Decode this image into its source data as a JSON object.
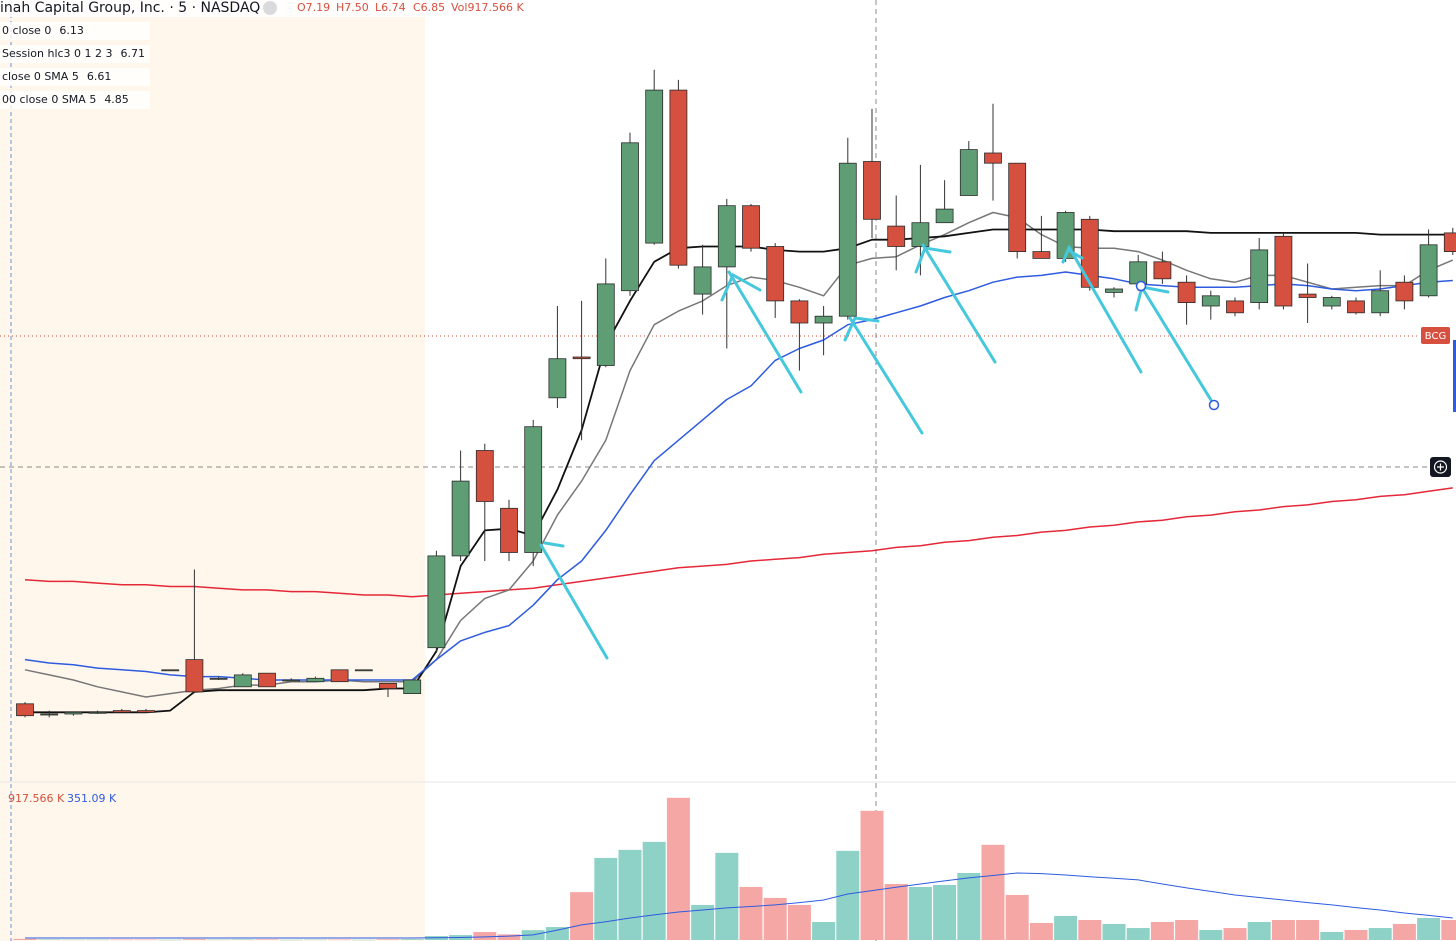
{
  "chart_data": {
    "type": "candlestick",
    "title": "inah Capital Group, Inc. · 5 · NASDAQ",
    "ohlc_labels": [
      "O7.19",
      "H7.50",
      "L6.74",
      "C6.85",
      "Vol917.566 K"
    ],
    "price_tag": "BCG",
    "ylim": [
      3.54,
      8.14
    ],
    "up_color": "#5f9e75",
    "down_color": "#d5503f",
    "candles": [
      [
        4.0,
        4.01,
        3.92,
        3.93
      ],
      [
        3.94,
        3.96,
        3.92,
        3.94
      ],
      [
        3.94,
        3.95,
        3.93,
        3.95
      ],
      [
        3.95,
        3.96,
        3.94,
        3.95
      ],
      [
        3.96,
        3.97,
        3.95,
        3.95
      ],
      [
        3.96,
        3.97,
        3.95,
        3.95
      ],
      [
        4.2,
        4.2,
        4.2,
        4.2
      ],
      [
        4.26,
        4.79,
        4.07,
        4.07
      ],
      [
        4.15,
        4.16,
        4.14,
        4.15
      ],
      [
        4.1,
        4.18,
        4.1,
        4.17
      ],
      [
        4.18,
        4.18,
        4.1,
        4.1
      ],
      [
        4.14,
        4.15,
        4.14,
        4.14
      ],
      [
        4.13,
        4.16,
        4.13,
        4.15
      ],
      [
        4.2,
        4.2,
        4.13,
        4.13
      ],
      [
        4.2,
        4.2,
        4.2,
        4.2
      ],
      [
        4.12,
        4.12,
        4.04,
        4.09
      ],
      [
        4.06,
        4.14,
        4.06,
        4.14
      ],
      [
        4.33,
        4.9,
        4.3,
        4.87
      ],
      [
        4.87,
        5.49,
        4.84,
        5.31
      ],
      [
        5.49,
        5.53,
        4.84,
        5.19
      ],
      [
        5.15,
        5.2,
        4.84,
        4.89
      ],
      [
        4.89,
        5.67,
        4.81,
        5.63
      ],
      [
        5.8,
        6.34,
        5.74,
        6.03
      ],
      [
        6.04,
        6.37,
        5.55,
        6.03
      ],
      [
        5.99,
        6.62,
        5.98,
        6.47
      ],
      [
        6.43,
        7.36,
        6.4,
        7.3
      ],
      [
        6.71,
        7.73,
        6.7,
        7.61
      ],
      [
        7.61,
        7.67,
        6.56,
        6.58
      ],
      [
        6.41,
        6.7,
        6.29,
        6.57
      ],
      [
        6.57,
        6.97,
        6.09,
        6.93
      ],
      [
        6.93,
        6.94,
        6.66,
        6.68
      ],
      [
        6.69,
        6.71,
        6.27,
        6.37
      ],
      [
        6.37,
        6.38,
        5.96,
        6.24
      ],
      [
        6.24,
        6.34,
        6.05,
        6.28
      ],
      [
        6.28,
        7.33,
        6.26,
        7.18
      ],
      [
        7.19,
        7.5,
        6.74,
        6.85
      ],
      [
        6.81,
        6.99,
        6.55,
        6.69
      ],
      [
        6.69,
        7.17,
        6.52,
        6.83
      ],
      [
        6.83,
        7.08,
        6.83,
        6.91
      ],
      [
        6.99,
        7.31,
        6.99,
        7.26
      ],
      [
        7.24,
        7.53,
        6.96,
        7.18
      ],
      [
        7.18,
        7.18,
        6.62,
        6.66
      ],
      [
        6.66,
        6.87,
        6.62,
        6.62
      ],
      [
        6.62,
        6.9,
        6.6,
        6.89
      ],
      [
        6.85,
        6.87,
        6.43,
        6.45
      ],
      [
        6.42,
        6.45,
        6.39,
        6.44
      ],
      [
        6.47,
        6.64,
        6.43,
        6.6
      ],
      [
        6.6,
        6.66,
        6.47,
        6.5
      ],
      [
        6.48,
        6.52,
        6.23,
        6.36
      ],
      [
        6.34,
        6.43,
        6.26,
        6.4
      ],
      [
        6.37,
        6.39,
        6.28,
        6.3
      ],
      [
        6.36,
        6.74,
        6.32,
        6.67
      ],
      [
        6.75,
        6.77,
        6.32,
        6.34
      ],
      [
        6.41,
        6.59,
        6.24,
        6.39
      ],
      [
        6.34,
        6.4,
        6.32,
        6.39
      ],
      [
        6.37,
        6.39,
        6.29,
        6.3
      ],
      [
        6.3,
        6.55,
        6.28,
        6.43
      ],
      [
        6.48,
        6.52,
        6.32,
        6.37
      ],
      [
        6.4,
        6.79,
        6.39,
        6.7
      ],
      [
        6.77,
        6.8,
        6.64,
        6.66
      ]
    ],
    "series": [
      {
        "name": "0 close 0",
        "value": 6.13,
        "color": "#2e5be0",
        "width": 1.5,
        "values": [
          4.26,
          4.24,
          4.23,
          4.21,
          4.2,
          4.19,
          4.17,
          4.16,
          4.16,
          4.15,
          4.14,
          4.14,
          4.14,
          4.14,
          4.14,
          4.14,
          4.14,
          4.26,
          4.37,
          4.42,
          4.46,
          4.58,
          4.73,
          4.84,
          5.02,
          5.23,
          5.43,
          5.55,
          5.67,
          5.79,
          5.87,
          6.02,
          6.09,
          6.14,
          6.23,
          6.26,
          6.3,
          6.34,
          6.39,
          6.43,
          6.48,
          6.51,
          6.52,
          6.54,
          6.52,
          6.5,
          6.47,
          6.46,
          6.45,
          6.45,
          6.45,
          6.46,
          6.47,
          6.46,
          6.44,
          6.43,
          6.44,
          6.46,
          6.48,
          6.49
        ]
      },
      {
        "name": "Session hlc3 0 1 2 3",
        "value": 6.71,
        "color": "#111111",
        "width": 1.8,
        "values": [
          3.95,
          3.95,
          3.95,
          3.95,
          3.95,
          3.95,
          3.96,
          4.07,
          4.08,
          4.08,
          4.08,
          4.08,
          4.08,
          4.08,
          4.08,
          4.09,
          4.09,
          4.31,
          4.81,
          5.02,
          5.03,
          4.99,
          5.26,
          5.61,
          6.11,
          6.37,
          6.6,
          6.68,
          6.69,
          6.69,
          6.69,
          6.67,
          6.66,
          6.66,
          6.68,
          6.73,
          6.73,
          6.74,
          6.75,
          6.77,
          6.79,
          6.79,
          6.79,
          6.79,
          6.79,
          6.78,
          6.78,
          6.78,
          6.78,
          6.77,
          6.77,
          6.77,
          6.77,
          6.77,
          6.77,
          6.77,
          6.76,
          6.76,
          6.76,
          6.76
        ]
      },
      {
        "name": "close 0 SMA 5",
        "value": 6.61,
        "color": "#777777",
        "width": 1.5,
        "values": [
          4.2,
          4.17,
          4.14,
          4.1,
          4.07,
          4.04,
          4.06,
          4.08,
          4.09,
          4.11,
          4.11,
          4.13,
          4.13,
          4.14,
          4.13,
          4.13,
          4.13,
          4.26,
          4.49,
          4.62,
          4.67,
          4.84,
          5.11,
          5.31,
          5.55,
          5.96,
          6.23,
          6.31,
          6.37,
          6.46,
          6.51,
          6.49,
          6.45,
          6.4,
          6.58,
          6.62,
          6.63,
          6.7,
          6.76,
          6.83,
          6.89,
          6.86,
          6.76,
          6.69,
          6.68,
          6.68,
          6.66,
          6.61,
          6.55,
          6.5,
          6.48,
          6.52,
          6.52,
          6.48,
          6.44,
          6.45,
          6.46,
          6.46,
          6.55,
          6.61
        ]
      },
      {
        "name": "00 close 0 SMA 5",
        "value": 4.85,
        "color": "#e52838",
        "width": 1.5,
        "values": [
          4.73,
          4.72,
          4.72,
          4.71,
          4.7,
          4.7,
          4.69,
          4.69,
          4.68,
          4.67,
          4.67,
          4.66,
          4.66,
          4.65,
          4.64,
          4.64,
          4.63,
          4.64,
          4.65,
          4.66,
          4.67,
          4.68,
          4.7,
          4.72,
          4.74,
          4.76,
          4.78,
          4.8,
          4.81,
          4.82,
          4.84,
          4.85,
          4.86,
          4.88,
          4.89,
          4.9,
          4.92,
          4.93,
          4.95,
          4.96,
          4.98,
          4.99,
          5.01,
          5.02,
          5.04,
          5.05,
          5.07,
          5.08,
          5.1,
          5.11,
          5.13,
          5.14,
          5.16,
          5.17,
          5.19,
          5.2,
          5.22,
          5.23,
          5.25,
          5.27
        ]
      }
    ],
    "volume": {
      "label": "917.566 K",
      "ma_label": "351.09 K",
      "ylim": [
        0,
        1030
      ],
      "up_color": "#8ed1c7",
      "down_color": "#f4a7a5",
      "ma_color": "#2e5be0",
      "values": [
        8,
        4,
        3,
        3,
        3,
        3,
        2,
        6,
        3,
        4,
        4,
        2,
        3,
        3,
        2,
        5,
        6,
        28,
        35,
        57,
        40,
        70,
        92,
        340,
        583,
        640,
        697,
        1010,
        249,
        619,
        377,
        299,
        249,
        128,
        633,
        917.566,
        398,
        377,
        391,
        476,
        676,
        320,
        121,
        171,
        142,
        114,
        85,
        128,
        142,
        71,
        85,
        128,
        142,
        142,
        57,
        71,
        85,
        114,
        156,
        142
      ],
      "ma_values": [
        14,
        14,
        14,
        14,
        14,
        14,
        14,
        14,
        14,
        14,
        14,
        14,
        14,
        14,
        14,
        14,
        14,
        16,
        18,
        22,
        28,
        36,
        70,
        107,
        130,
        156,
        178,
        199,
        213,
        228,
        238,
        249,
        266,
        284,
        327,
        351.09,
        375,
        398,
        420,
        441,
        458,
        476,
        472,
        462,
        450,
        438,
        427,
        398,
        370,
        345,
        320,
        302,
        284,
        266,
        249,
        230,
        213,
        192,
        175,
        156
      ]
    }
  }
}
